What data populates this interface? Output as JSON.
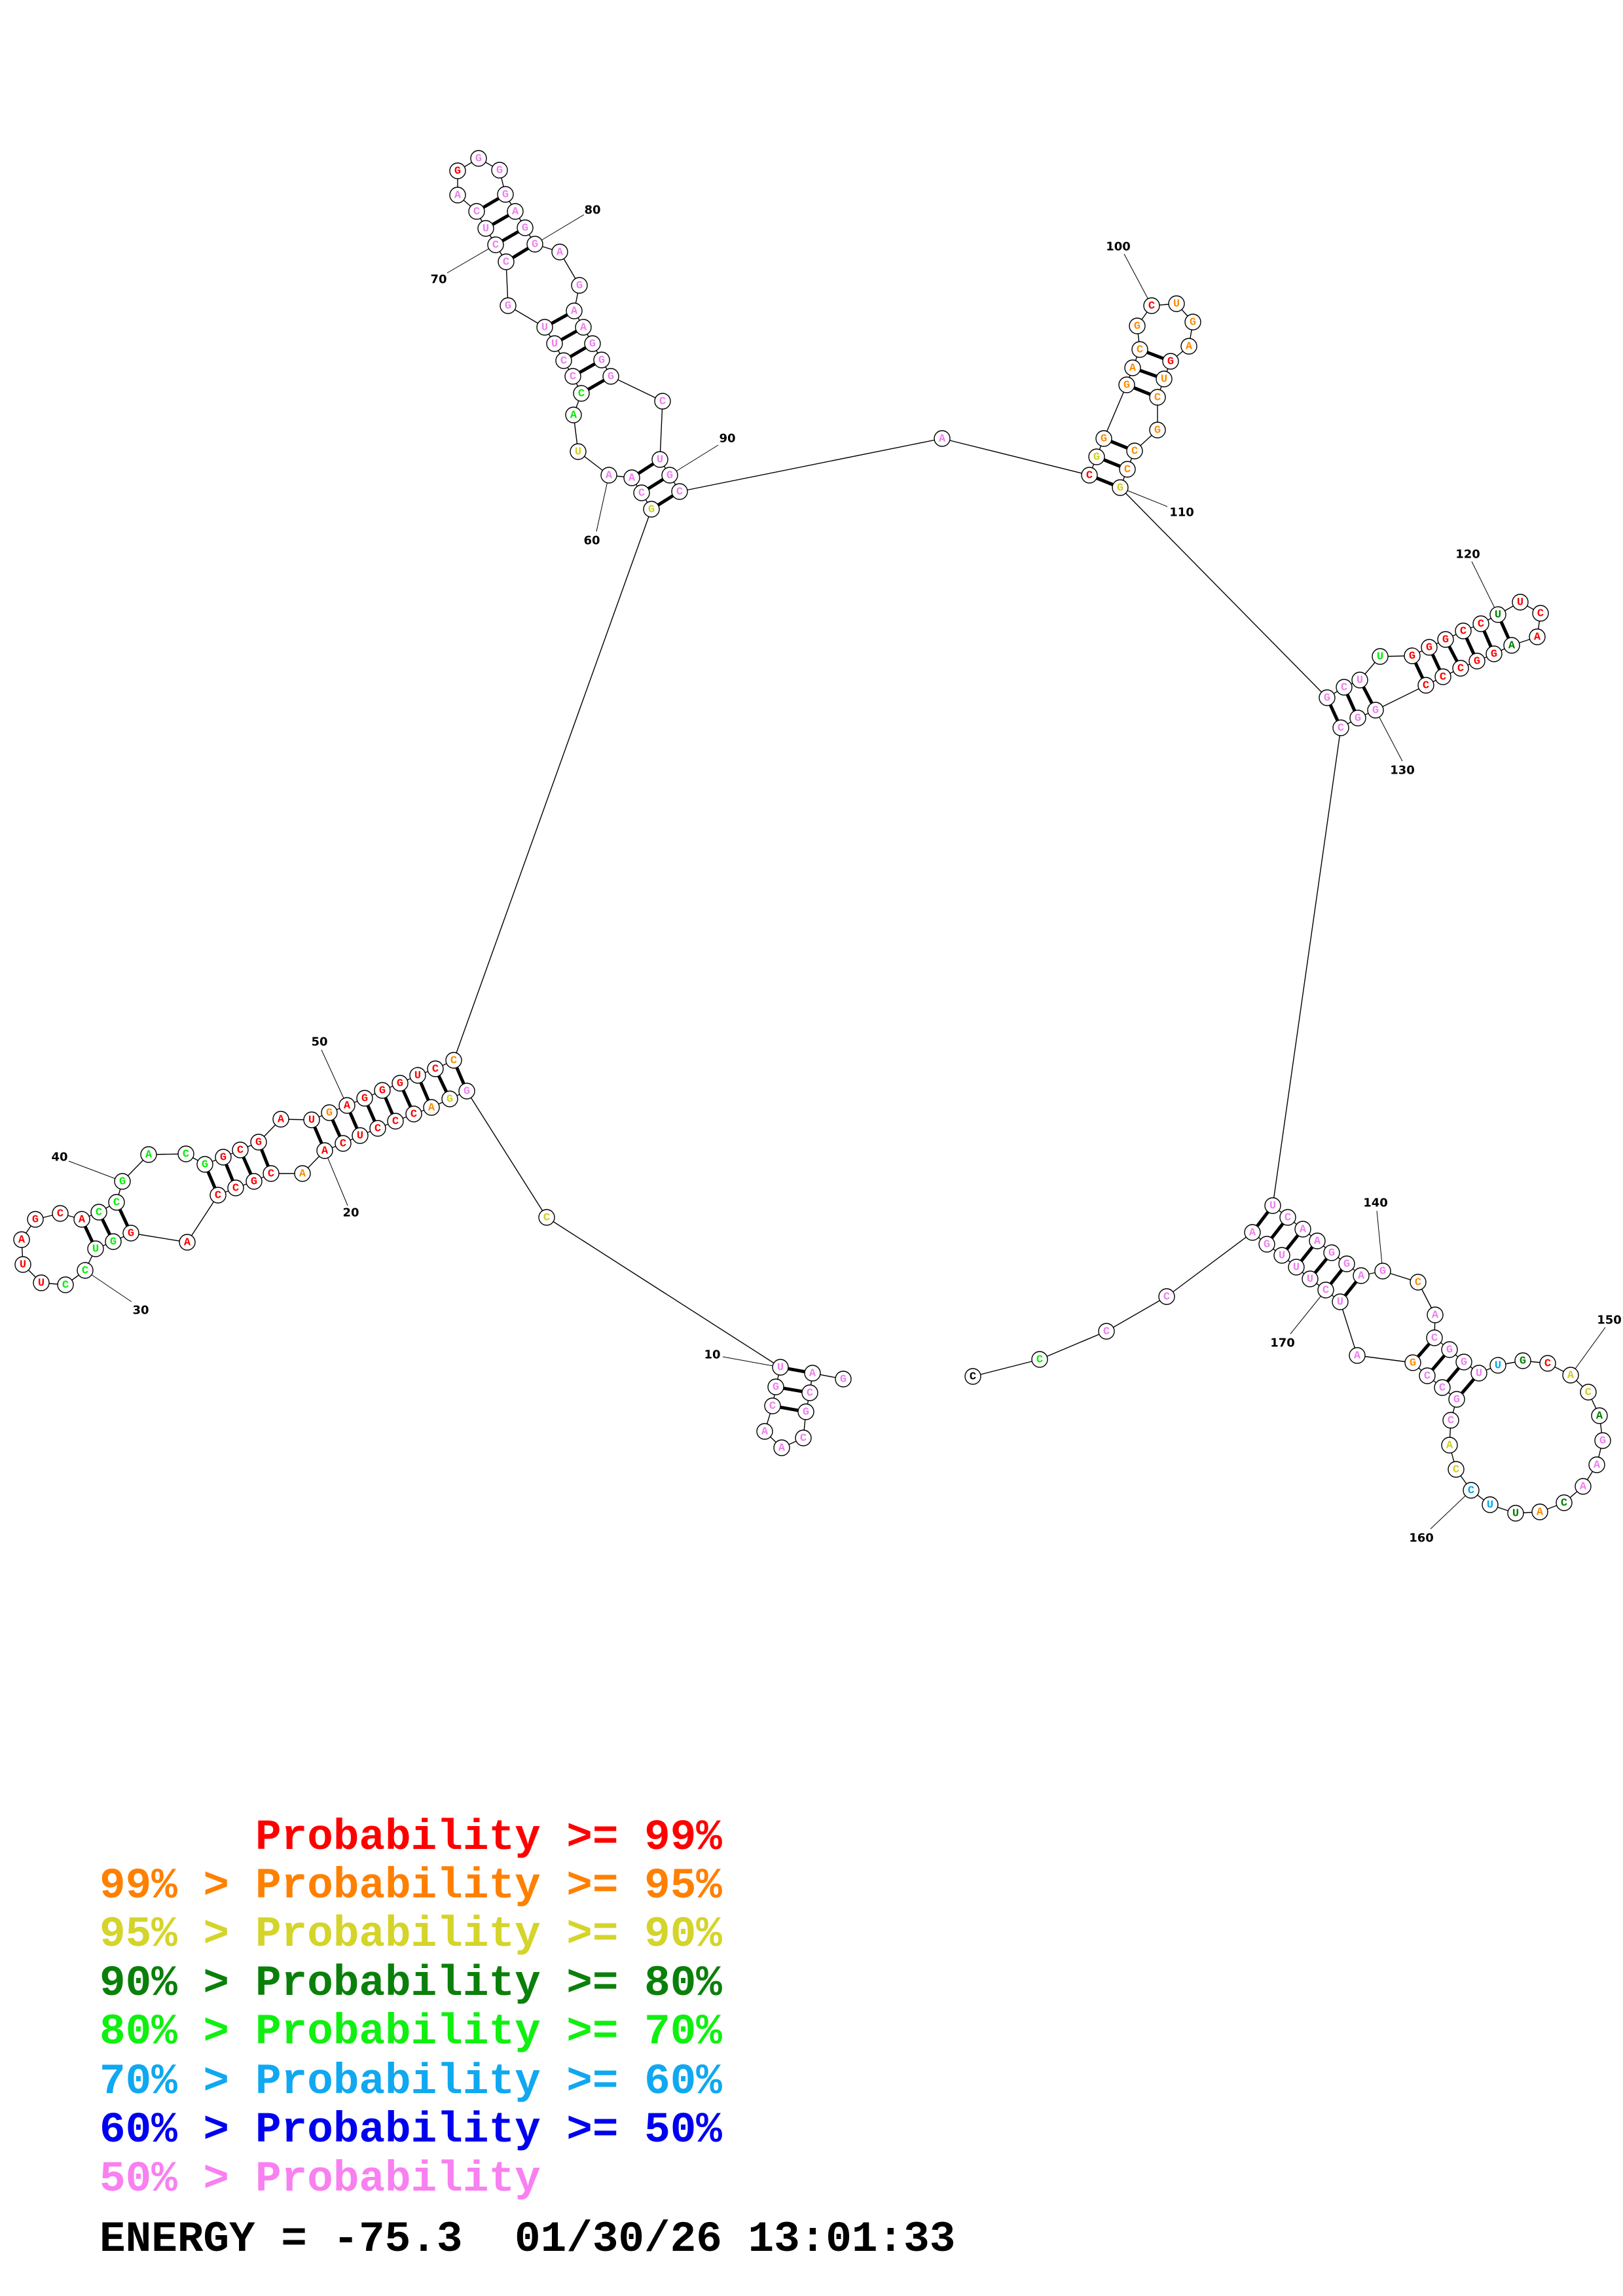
{
  "molecule": {
    "sequence": "GACGCAACGUCGGACCCUCAACGCCAGGUCCUUAGCACCGACGGCGAUGAGGGUCCGCAAUACCCUUGCCUCAGGGGAGGAGAAGGGCUGCACGGGACGCUGAGUCGCCGGCUUGGGCCUUCAAGGCCCGGCUCAAGGAGCACGGUUGCACAGAACAUUCCACGCCGAUCUUUGACCCC",
    "probability_classes": "ppppppppppypyorrrrrrorrrrrrggggrrrrrrggggggrrrrrorrrrrroypppyggpppppppppprppppppppppppppppppryoooooroooroooooyppp grrrrrdrrrdrrrrrpppppppppppopppppcdryydpppdodccyyppppoppppppppppg"
  },
  "probability_colors": {
    "r": "#ff0000",
    "o": "#ff8c00",
    "y": "#d0d020",
    "d": "#008000",
    "g": "#00f000",
    "c": "#00a8f0",
    "b": "#0000ff",
    "p": "#f080f0"
  },
  "pairs": [
    [
      2,
      10
    ],
    [
      3,
      9
    ],
    [
      4,
      8
    ],
    [
      12,
      56
    ],
    [
      13,
      55
    ],
    [
      14,
      54
    ],
    [
      15,
      53
    ],
    [
      16,
      52
    ],
    [
      17,
      51
    ],
    [
      18,
      50
    ],
    [
      19,
      49
    ],
    [
      20,
      48
    ],
    [
      22,
      46
    ],
    [
      23,
      45
    ],
    [
      24,
      44
    ],
    [
      25,
      43
    ],
    [
      27,
      39
    ],
    [
      28,
      38
    ],
    [
      29,
      37
    ],
    [
      57,
      91
    ],
    [
      58,
      90
    ],
    [
      59,
      89
    ],
    [
      63,
      87
    ],
    [
      64,
      86
    ],
    [
      65,
      85
    ],
    [
      66,
      84
    ],
    [
      67,
      83
    ],
    [
      69,
      80
    ],
    [
      70,
      79
    ],
    [
      71,
      78
    ],
    [
      72,
      77
    ],
    [
      93,
      110
    ],
    [
      94,
      109
    ],
    [
      95,
      108
    ],
    [
      96,
      106
    ],
    [
      97,
      105
    ],
    [
      98,
      104
    ],
    [
      111,
      132
    ],
    [
      112,
      131
    ],
    [
      113,
      130
    ],
    [
      115,
      129
    ],
    [
      116,
      128
    ],
    [
      117,
      127
    ],
    [
      118,
      126
    ],
    [
      119,
      125
    ],
    [
      120,
      124
    ],
    [
      133,
      175
    ],
    [
      134,
      174
    ],
    [
      135,
      173
    ],
    [
      136,
      172
    ],
    [
      137,
      171
    ],
    [
      138,
      170
    ],
    [
      139,
      169
    ],
    [
      143,
      167
    ],
    [
      144,
      166
    ],
    [
      145,
      165
    ],
    [
      146,
      164
    ]
  ],
  "position_labels": [
    "10",
    "20",
    "30",
    "40",
    "50",
    "60",
    "70",
    "80",
    "90",
    "100",
    "110",
    "120",
    "130",
    "140",
    "150",
    "160",
    "170"
  ],
  "legend": [
    {
      "prefix": "",
      "label": "Probability >= 99%",
      "color": "#ff0000"
    },
    {
      "prefix": "99% >",
      "label": "Probability >= 95%",
      "color": "#ff8000"
    },
    {
      "prefix": "95% >",
      "label": "Probability >= 90%",
      "color": "#d4d42a"
    },
    {
      "prefix": "90% >",
      "label": "Probability >= 80%",
      "color": "#0a800a"
    },
    {
      "prefix": "80% >",
      "label": "Probability >= 70%",
      "color": "#10f010"
    },
    {
      "prefix": "70% >",
      "label": "Probability >= 60%",
      "color": "#10a8f0"
    },
    {
      "prefix": "60% >",
      "label": "Probability >= 50%",
      "color": "#0000f0"
    },
    {
      "prefix": "50% >",
      "label": "Probability",
      "color": "#f880f0"
    }
  ],
  "footer": {
    "energy": "ENERGY = -75.3",
    "timestamp": "01/30/26 13:01:33"
  }
}
